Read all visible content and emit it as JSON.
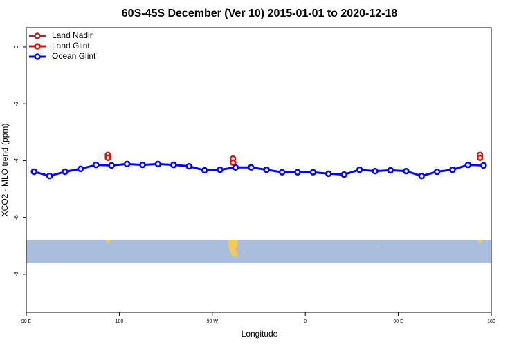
{
  "chart_data": {
    "type": "line",
    "title": "60S-45S December (Ver 10)   2015-01-01 to 2020-12-18",
    "x_label": "Longitude",
    "y_label": "XCO2 - MLO trend (ppm)",
    "xlim": [
      90,
      540
    ],
    "xticks": [
      {
        "value": 90,
        "label": "90 E"
      },
      180,
      {
        "value": 270,
        "label": "90 W"
      },
      {
        "value": 360,
        "label": "0"
      },
      {
        "value": 450,
        "label": "90 E"
      },
      {
        "value": 540,
        "label": "180"
      }
    ],
    "ylim": [
      -9.34,
      0.68
    ],
    "yticks": [
      0,
      -2,
      -4,
      -6,
      -8
    ],
    "legend": "top-left",
    "series": [
      {
        "name": "Land Nadir",
        "color": "#a52a2a",
        "lines": false,
        "x": [
          169,
          290,
          529
        ],
        "values": [
          -3.8,
          -3.93,
          -3.8
        ]
      },
      {
        "name": "Land Glint",
        "color": "#ff0000",
        "lines": false,
        "x": [
          169,
          290,
          529
        ],
        "values": [
          -3.9,
          -4.07,
          -3.9
        ]
      },
      {
        "name": "Ocean Glint",
        "color": "#0000ff",
        "lines": true,
        "x": [
          97.5,
          112.5,
          127.5,
          142.5,
          157.5,
          172.5,
          187.5,
          202.5,
          217.5,
          232.5,
          247.5,
          262.5,
          277.5,
          292.5,
          307.5,
          322.5,
          337.5,
          352.5,
          367.5,
          382.5,
          397.5,
          412.5,
          427.5,
          442.5,
          457.5,
          472.5,
          487.5,
          502.5,
          517.5,
          532.5
        ],
        "values": [
          -4.39,
          -4.54,
          -4.39,
          -4.29,
          -4.15,
          -4.17,
          -4.12,
          -4.15,
          -4.12,
          -4.15,
          -4.2,
          -4.34,
          -4.32,
          -4.24,
          -4.24,
          -4.32,
          -4.41,
          -4.41,
          -4.41,
          -4.46,
          -4.49,
          -4.32,
          -4.37,
          -4.34,
          -4.37,
          -4.54,
          -4.39,
          -4.32,
          -4.15,
          -4.17
        ]
      }
    ]
  }
}
